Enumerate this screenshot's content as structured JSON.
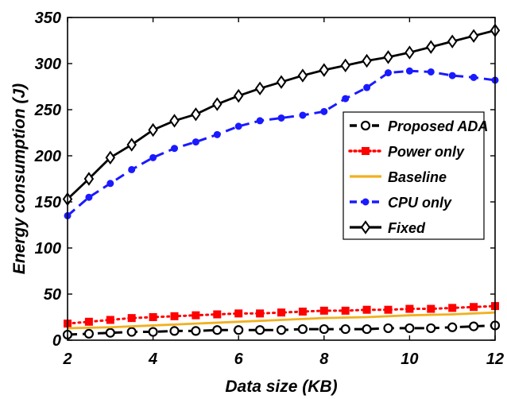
{
  "chart_data": {
    "type": "line",
    "title": "",
    "xlabel": "Data size (KB)",
    "ylabel": "Energy consumption (J)",
    "xlim": [
      2,
      12
    ],
    "ylim": [
      0,
      350
    ],
    "xticks": [
      2,
      4,
      6,
      8,
      10,
      12
    ],
    "yticks": [
      0,
      50,
      100,
      150,
      200,
      250,
      300,
      350
    ],
    "grid": false,
    "legend_position": "right",
    "series": [
      {
        "name": "Proposed ADA",
        "color": "#000000",
        "line": "dash",
        "marker": "open-circle",
        "x": [
          2,
          2.5,
          3,
          3.5,
          4,
          4.5,
          5,
          5.5,
          6,
          6.5,
          7,
          7.5,
          8,
          8.5,
          9,
          9.5,
          10,
          10.5,
          11,
          11.5,
          12
        ],
        "y": [
          6,
          7,
          8,
          9,
          9,
          10,
          10,
          11,
          11,
          11,
          11,
          12,
          12,
          12,
          12,
          13,
          13,
          13,
          14,
          15,
          16
        ]
      },
      {
        "name": "Power only",
        "color": "#ff0000",
        "line": "dot",
        "marker": "square",
        "x": [
          2,
          2.5,
          3,
          3.5,
          4,
          4.5,
          5,
          5.5,
          6,
          6.5,
          7,
          7.5,
          8,
          8.5,
          9,
          9.5,
          10,
          10.5,
          11,
          11.5,
          12
        ],
        "y": [
          18,
          20,
          22,
          24,
          25,
          26,
          27,
          28,
          29,
          29,
          30,
          31,
          32,
          32,
          33,
          33,
          34,
          34,
          35,
          36,
          37
        ]
      },
      {
        "name": "Baseline",
        "color": "#f0b020",
        "line": "solid",
        "marker": "none",
        "x": [
          2,
          3,
          4,
          5,
          6,
          7,
          8,
          9,
          10,
          11,
          12
        ],
        "y": [
          13,
          14,
          16,
          18,
          20,
          22,
          24,
          25,
          27,
          28,
          30
        ]
      },
      {
        "name": "CPU only",
        "color": "#1a1aff",
        "line": "dash",
        "marker": "dot",
        "x": [
          2,
          2.5,
          3,
          3.5,
          4,
          4.5,
          5,
          5.5,
          6,
          6.5,
          7,
          7.5,
          8,
          8.5,
          9,
          9.5,
          10,
          10.5,
          11,
          11.5,
          12
        ],
        "y": [
          135,
          155,
          170,
          185,
          198,
          208,
          215,
          223,
          232,
          238,
          241,
          244,
          248,
          262,
          274,
          290,
          292,
          291,
          287,
          285,
          282
        ]
      },
      {
        "name": "Fixed",
        "color": "#000000",
        "line": "solid",
        "marker": "diamond",
        "x": [
          2,
          2.5,
          3,
          3.5,
          4,
          4.5,
          5,
          5.5,
          6,
          6.5,
          7,
          7.5,
          8,
          8.5,
          9,
          9.5,
          10,
          10.5,
          11,
          11.5,
          12
        ],
        "y": [
          153,
          175,
          198,
          212,
          228,
          238,
          245,
          256,
          265,
          273,
          280,
          287,
          293,
          298,
          303,
          307,
          312,
          318,
          324,
          330,
          336
        ]
      }
    ]
  }
}
